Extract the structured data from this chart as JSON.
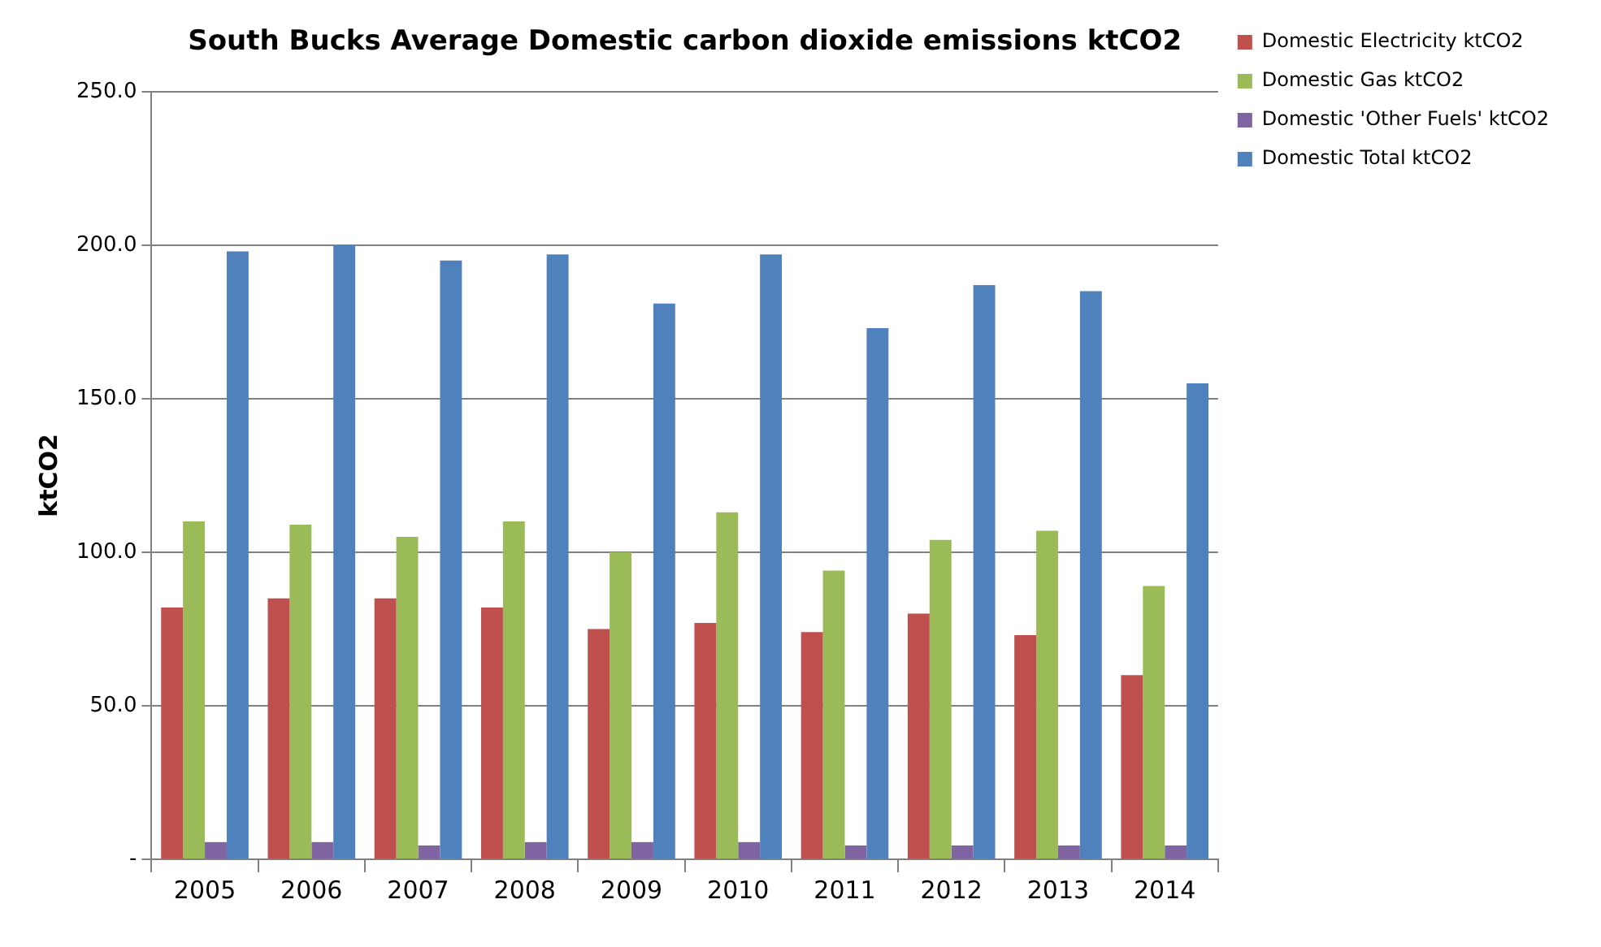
{
  "chart_data": {
    "type": "bar",
    "title": "South Bucks Average Domestic carbon dioxide emissions ktCO2",
    "ylabel": "ktCO2",
    "categories": [
      "2005",
      "2006",
      "2007",
      "2008",
      "2009",
      "2010",
      "2011",
      "2012",
      "2013",
      "2014"
    ],
    "series": [
      {
        "name": "Domestic Electricity ktCO2",
        "color": "#c0504d",
        "values": [
          82,
          85,
          85,
          82,
          75,
          77,
          74,
          80,
          73,
          60
        ]
      },
      {
        "name": "Domestic Gas ktCO2",
        "color": "#9bbb59",
        "values": [
          110,
          109,
          105,
          110,
          100,
          113,
          94,
          104,
          107,
          89
        ]
      },
      {
        "name": "Domestic 'Other Fuels' ktCO2",
        "color": "#8064a2",
        "values": [
          5.6,
          5.6,
          4.5,
          5.6,
          5.6,
          5.6,
          4.5,
          4.5,
          4.5,
          4.5
        ]
      },
      {
        "name": "Domestic Total ktCO2",
        "color": "#4f81bd",
        "values": [
          198,
          200,
          195,
          197,
          181,
          197,
          173,
          187,
          185,
          155
        ]
      }
    ],
    "ylim": [
      0,
      250
    ],
    "yticks": [
      {
        "value": 0,
        "label": "-"
      },
      {
        "value": 50,
        "label": "50.0"
      },
      {
        "value": 100,
        "label": "100.0"
      },
      {
        "value": 150,
        "label": "150.0"
      },
      {
        "value": 200,
        "label": "200.0"
      },
      {
        "value": 250,
        "label": "250.0"
      }
    ],
    "grid": "y",
    "legend": "top right"
  }
}
